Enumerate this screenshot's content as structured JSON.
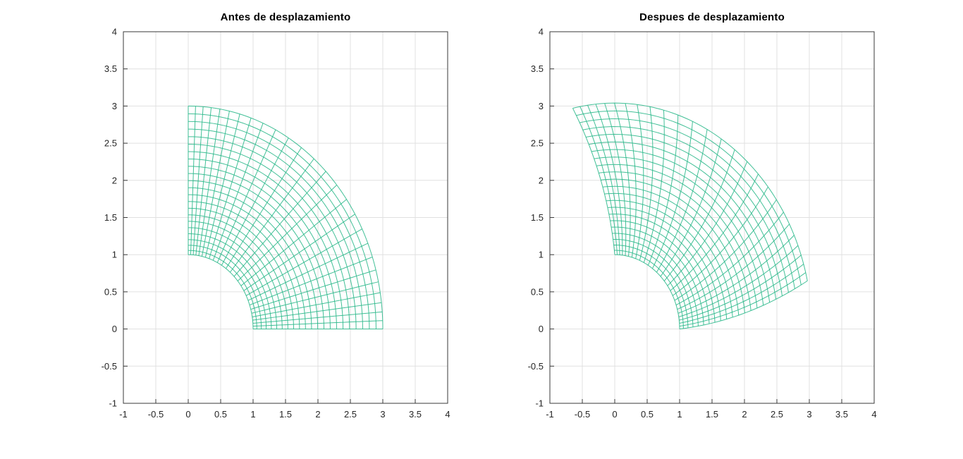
{
  "figure": {
    "background": "#ffffff"
  },
  "chart_data": {
    "type": "mesh",
    "description": "Quarter-annulus finite-element mesh (inner radius 1, outer radius 3, 0-90 degrees) shown before and after a torsional displacement field; inner edge fixed, outer edge rotated counter-clockwise.",
    "colors": {
      "mesh": "#2eb98c",
      "grid": "#e0e0e0",
      "axis": "#3a3a3a",
      "tick_label": "#262626",
      "title": "#000000",
      "background": "#ffffff"
    },
    "axes": {
      "xlim": [
        -1,
        4
      ],
      "ylim": [
        -1,
        4
      ],
      "tick_values": [
        -1,
        -0.5,
        0,
        0.5,
        1,
        1.5,
        2,
        2.5,
        3,
        3.5,
        4
      ],
      "tick_labels": [
        "-1",
        "-0.5",
        "0",
        "0.5",
        "1",
        "1.5",
        "2",
        "2.5",
        "3",
        "3.5",
        "4"
      ],
      "grid": true,
      "box": true
    },
    "mesh": {
      "r_inner": 1,
      "r_outer": 3,
      "n_radial": 22,
      "n_angular": 26,
      "theta_start_deg": 0,
      "theta_end_deg": 90,
      "radial_grading_exponent": 1.15,
      "angular_clustering": 0.38
    },
    "displacement": {
      "type": "torsion",
      "rotation_outer_deg": 12.3,
      "radial_growth": 0.02
    },
    "plots": [
      {
        "title": "Antes de desplazamiento",
        "deformed": false
      },
      {
        "title": "Despues de desplazamiento",
        "deformed": true
      }
    ]
  }
}
